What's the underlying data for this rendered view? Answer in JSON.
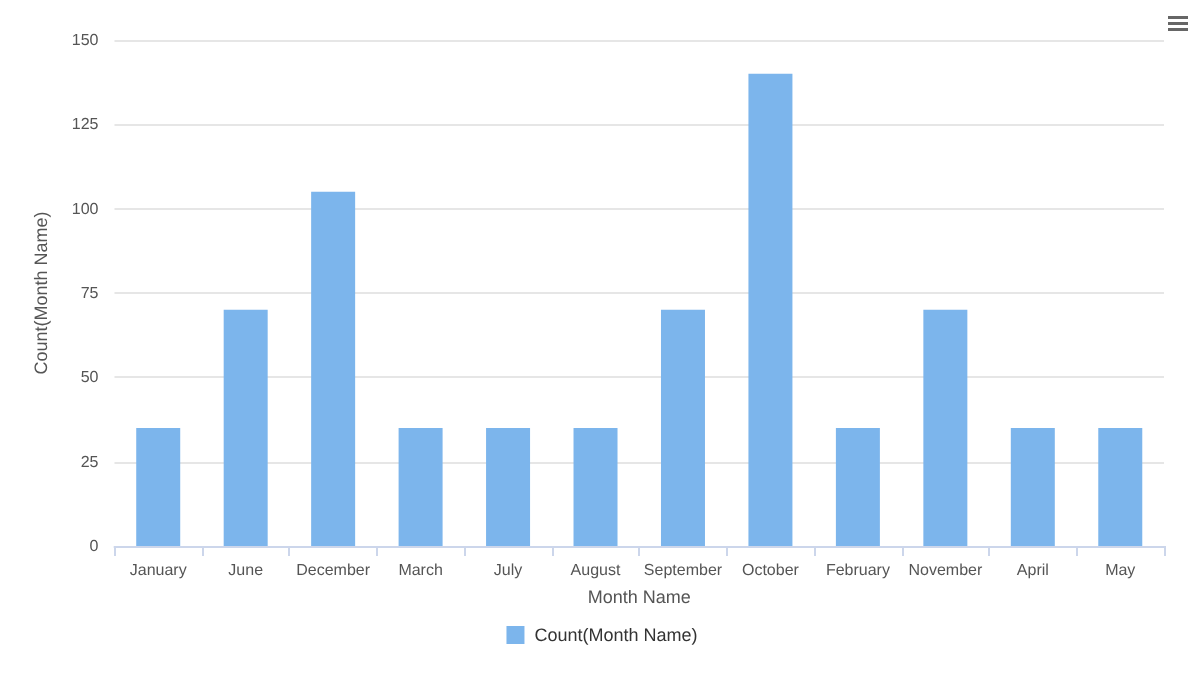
{
  "chart_data": {
    "type": "bar",
    "xlabel": "Month Name",
    "ylabel": "Count(Month Name)",
    "categories": [
      "January",
      "June",
      "December",
      "March",
      "July",
      "August",
      "September",
      "October",
      "February",
      "November",
      "April",
      "May"
    ],
    "series": [
      {
        "name": "Count(Month Name)",
        "color": "#7cb5ec",
        "values": [
          35,
          70,
          105,
          35,
          35,
          35,
          70,
          140,
          35,
          70,
          35,
          35
        ]
      }
    ],
    "ylim": [
      0,
      150
    ],
    "yticks": [
      0,
      25,
      50,
      75,
      100,
      125,
      150
    ],
    "grid": "y",
    "legend": "bottom"
  }
}
